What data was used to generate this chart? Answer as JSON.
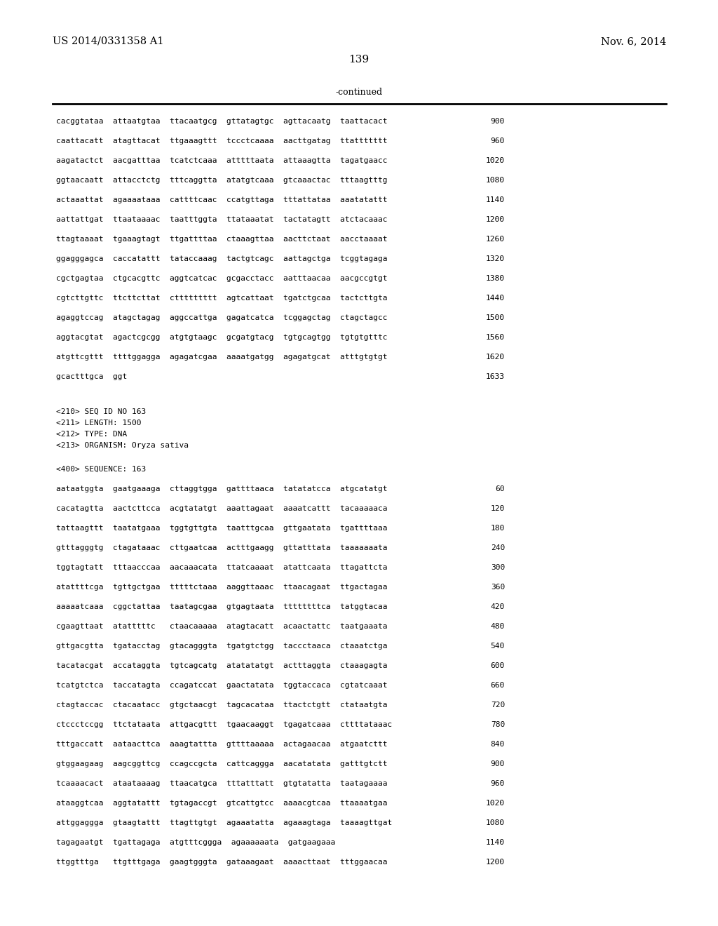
{
  "background_color": "#ffffff",
  "header_left": "US 2014/0331358 A1",
  "header_right": "Nov. 6, 2014",
  "page_number": "139",
  "continued_text": "-continued",
  "sequence_lines_top": [
    {
      "text": "cacggtataa  attaatgtaa  ttacaatgcg  gttatagtgc  agttacaatg  taattacact",
      "num": "900"
    },
    {
      "text": "caattacatt  atagttacat  ttgaaagttt  tccctcaaaa  aacttgatag  ttattttttt",
      "num": "960"
    },
    {
      "text": "aagatactct  aacgatttaa  tcatctcaaa  atttttaata  attaaagtta  tagatgaacc",
      "num": "1020"
    },
    {
      "text": "ggtaacaatt  attacctctg  tttcaggtta  atatgtcaaa  gtcaaactac  tttaagtttg",
      "num": "1080"
    },
    {
      "text": "actaaattat  agaaaataaa  cattttcaac  ccatgttaga  tttattataa  aaatatattt",
      "num": "1140"
    },
    {
      "text": "aattattgat  ttaataaaac  taatttggta  ttataaatat  tactatagtt  atctacaaac",
      "num": "1200"
    },
    {
      "text": "ttagtaaaat  tgaaagtagt  ttgattttaa  ctaaagttaa  aacttctaat  aacctaaaat",
      "num": "1260"
    },
    {
      "text": "ggagggagca  caccatattt  tataccaaag  tactgtcagc  aattagctga  tcggtagaga",
      "num": "1320"
    },
    {
      "text": "cgctgagtaa  ctgcacgttc  aggtcatcac  gcgacctacc  aatttaacaa  aacgccgtgt",
      "num": "1380"
    },
    {
      "text": "cgtcttgttc  ttcttcttat  cttttttttt  agtcattaat  tgatctgcaa  tactcttgta",
      "num": "1440"
    },
    {
      "text": "agaggtccag  atagctagag  aggccattga  gagatcatca  tcggagctag  ctagctagcc",
      "num": "1500"
    },
    {
      "text": "aggtacgtat  agactcgcgg  atgtgtaagc  gcgatgtacg  tgtgcagtgg  tgtgtgtttc",
      "num": "1560"
    },
    {
      "text": "atgttcgttt  ttttggagga  agagatcgaa  aaaatgatgg  agagatgcat  atttgtgtgt",
      "num": "1620"
    },
    {
      "text": "gcactttgca  ggt",
      "num": "1633"
    }
  ],
  "metadata_lines": [
    "<210> SEQ ID NO 163",
    "<211> LENGTH: 1500",
    "<212> TYPE: DNA",
    "<213> ORGANISM: Oryza sativa"
  ],
  "sequence_label": "<400> SEQUENCE: 163",
  "sequence_lines_bottom": [
    {
      "text": "aataatggta  gaatgaaaga  cttaggtgga  gattttaaca  tatatatcca  atgcatatgt",
      "num": "60"
    },
    {
      "text": "cacatagtta  aactcttcca  acgtatatgt  aaattagaat  aaaatcattt  tacaaaaaca",
      "num": "120"
    },
    {
      "text": "tattaagttt  taatatgaaa  tggtgttgta  taatttgcaa  gttgaatata  tgattttaaa",
      "num": "180"
    },
    {
      "text": "gtttagggtg  ctagataaac  cttgaatcaa  actttgaagg  gttatttata  taaaaaaata",
      "num": "240"
    },
    {
      "text": "tggtagtatt  tttaacccaa  aacaaacata  ttatcaaaat  atattcaata  ttagattcta",
      "num": "300"
    },
    {
      "text": "atattttcga  tgttgctgaa  tttttctaaa  aaggttaaac  ttaacagaat  ttgactagaa",
      "num": "360"
    },
    {
      "text": "aaaaatcaaa  cggctattaa  taatagcgaa  gtgagtaata  ttttttttca  tatggtacaa",
      "num": "420"
    },
    {
      "text": "cgaagttaat  atatttttc   ctaacaaaaa  atagtacatt  acaactattc  taatgaaata",
      "num": "480"
    },
    {
      "text": "gttgacgtta  tgatacctag  gtacagggta  tgatgtctgg  taccctaaca  ctaaatctga",
      "num": "540"
    },
    {
      "text": "tacatacgat  accataggta  tgtcagcatg  atatatatgt  actttaggta  ctaaagagta",
      "num": "600"
    },
    {
      "text": "tcatgtctca  taccatagta  ccagatccat  gaactatata  tggtaccaca  cgtatcaaat",
      "num": "660"
    },
    {
      "text": "ctagtaccac  ctacaatacc  gtgctaacgt  tagcacataa  ttactctgtt  ctataatgta",
      "num": "720"
    },
    {
      "text": "ctccctccgg  ttctataata  attgacgttt  tgaacaaggt  tgagatcaaa  cttttataaac",
      "num": "780"
    },
    {
      "text": "tttgaccatt  aataacttca  aaagtattta  gttttaaaaa  actagaacaa  atgaatcttt",
      "num": "840"
    },
    {
      "text": "gtggaagaag  aagcggttcg  ccagccgcta  cattcaggga  aacatatata  gatttgtctt",
      "num": "900"
    },
    {
      "text": "tcaaaacact  ataataaaag  ttaacatgca  tttatttatt  gtgtatatta  taatagaaaa",
      "num": "960"
    },
    {
      "text": "ataaggtcaa  aggtatattt  tgtagaccgt  gtcattgtcc  aaaacgtcaa  ttaaaatgaa",
      "num": "1020"
    },
    {
      "text": "attggaggga  gtaagtattt  ttagttgtgt  agaaatatta  agaaagtaga  taaaagttgat",
      "num": "1080"
    },
    {
      "text": "tagagaatgt  tgattagaga  atgtttcggga  agaaaaaata  gatgaagaaa",
      "num": "1140"
    },
    {
      "text": "ttggtttga   ttgtttgaga  gaagtgggta  gataaagaat  aaaacttaat  tttggaacaa",
      "num": "1200"
    }
  ],
  "font_size_header": 10.5,
  "font_size_mono": 8.0,
  "font_size_page": 11.0
}
